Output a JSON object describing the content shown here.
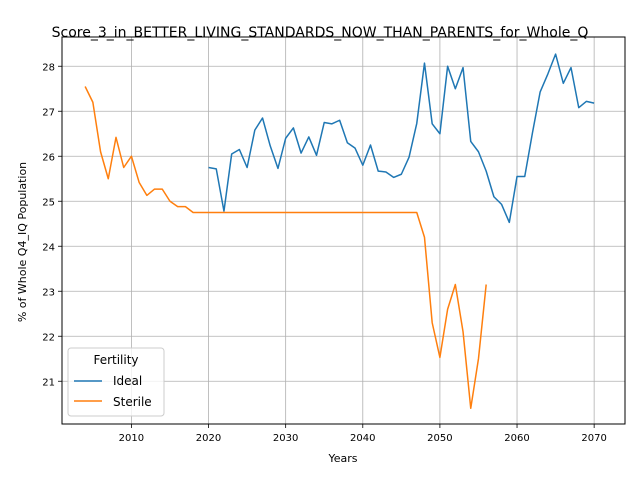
{
  "chart_data": {
    "type": "line",
    "title": "Score_3_in_BETTER_LIVING_STANDARDS_NOW_THAN_PARENTS_for_Whole_Q",
    "xlabel": "Years",
    "ylabel": "% of Whole Q4_IQ Population",
    "xlim": [
      2001,
      2074
    ],
    "ylim": [
      20.05,
      28.65
    ],
    "xticks": [
      2010,
      2020,
      2030,
      2040,
      2050,
      2060,
      2070
    ],
    "yticks": [
      21,
      22,
      23,
      24,
      25,
      26,
      27,
      28
    ],
    "grid": true,
    "legend": {
      "title": "Fertility",
      "placement": "lower-left"
    },
    "series": [
      {
        "name": "Ideal",
        "color": "#1f77b4",
        "x": [
          2020,
          2021,
          2022,
          2023,
          2024,
          2025,
          2026,
          2027,
          2028,
          2029,
          2030,
          2031,
          2032,
          2033,
          2034,
          2035,
          2036,
          2037,
          2038,
          2039,
          2040,
          2041,
          2042,
          2043,
          2044,
          2045,
          2046,
          2047,
          2048,
          2049,
          2050,
          2051,
          2052,
          2053,
          2054,
          2055,
          2056,
          2057,
          2058,
          2059,
          2060,
          2061,
          2062,
          2063,
          2064,
          2065,
          2066,
          2067,
          2068,
          2069,
          2070
        ],
        "values": [
          25.75,
          25.72,
          24.78,
          26.05,
          26.15,
          25.75,
          26.58,
          26.85,
          26.23,
          25.73,
          26.4,
          26.63,
          26.07,
          26.43,
          26.02,
          26.75,
          26.72,
          26.8,
          26.3,
          26.18,
          25.8,
          26.25,
          25.67,
          25.65,
          25.53,
          25.6,
          25.98,
          26.73,
          28.07,
          26.72,
          26.5,
          28.0,
          27.5,
          27.97,
          26.33,
          26.1,
          25.67,
          25.1,
          24.93,
          24.53,
          25.55,
          25.55,
          26.52,
          27.43,
          27.83,
          28.27,
          27.62,
          27.97,
          27.08,
          27.22,
          27.18
        ]
      },
      {
        "name": "Sterile",
        "color": "#ff7f0e",
        "x": [
          2004,
          2005,
          2006,
          2007,
          2008,
          2009,
          2010,
          2011,
          2012,
          2013,
          2014,
          2015,
          2016,
          2017,
          2018,
          2019,
          2020,
          2021,
          2022,
          2023,
          2024,
          2025,
          2026,
          2027,
          2028,
          2029,
          2030,
          2031,
          2032,
          2033,
          2034,
          2035,
          2036,
          2037,
          2038,
          2039,
          2040,
          2041,
          2042,
          2043,
          2044,
          2045,
          2046,
          2047,
          2048,
          2049,
          2050,
          2051,
          2052,
          2053,
          2054,
          2055,
          2056
        ],
        "values": [
          27.55,
          27.2,
          26.1,
          25.5,
          26.42,
          25.75,
          26.0,
          25.42,
          25.13,
          25.27,
          25.27,
          25.0,
          24.88,
          24.88,
          24.75,
          24.75,
          24.75,
          24.75,
          24.75,
          24.75,
          24.75,
          24.75,
          24.75,
          24.75,
          24.75,
          24.75,
          24.75,
          24.75,
          24.75,
          24.75,
          24.75,
          24.75,
          24.75,
          24.75,
          24.75,
          24.75,
          24.75,
          24.75,
          24.75,
          24.75,
          24.75,
          24.75,
          24.75,
          24.75,
          24.2,
          22.3,
          21.53,
          22.6,
          23.15,
          22.1,
          20.4,
          21.5,
          23.15
        ]
      }
    ]
  }
}
